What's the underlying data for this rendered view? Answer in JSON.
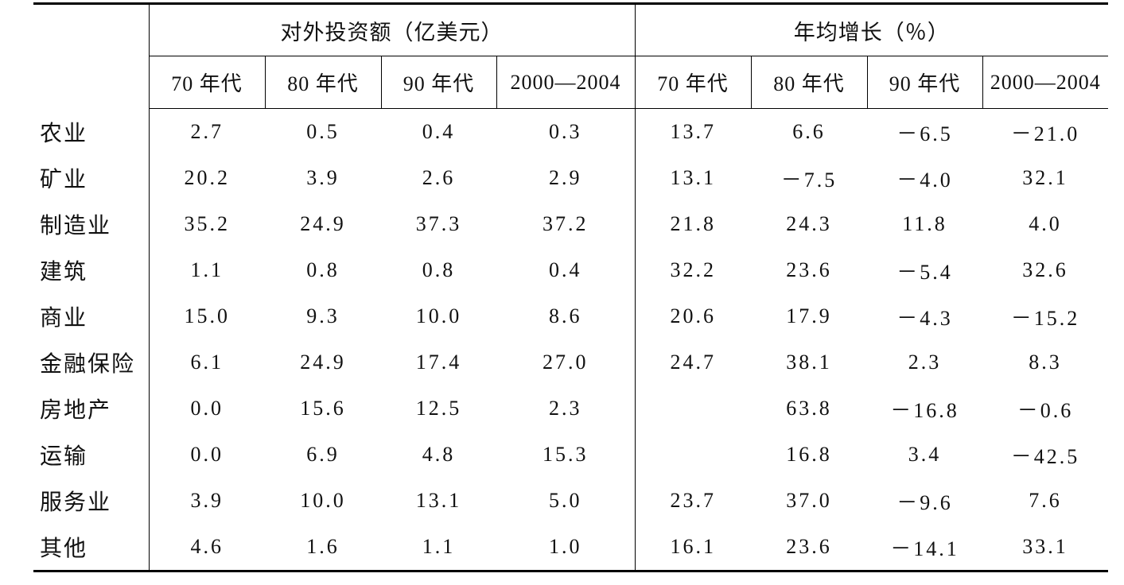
{
  "table": {
    "header": {
      "groups": [
        "对外投资额（亿美元）",
        "年均增长（％）"
      ],
      "columns": [
        "70 年代",
        "80 年代",
        "90 年代",
        "2000—2004",
        "70 年代",
        "80 年代",
        "90 年代",
        "2000—2004"
      ]
    },
    "rows": [
      {
        "label": "农业",
        "values": [
          "2.7",
          "0.5",
          "0.4",
          "0.3",
          "13.7",
          "6.6",
          "－6.5",
          "－21.0"
        ]
      },
      {
        "label": "矿业",
        "values": [
          "20.2",
          "3.9",
          "2.6",
          "2.9",
          "13.1",
          "－7.5",
          "－4.0",
          "32.1"
        ]
      },
      {
        "label": "制造业",
        "values": [
          "35.2",
          "24.9",
          "37.3",
          "37.2",
          "21.8",
          "24.3",
          "11.8",
          "4.0"
        ]
      },
      {
        "label": "建筑",
        "values": [
          "1.1",
          "0.8",
          "0.8",
          "0.4",
          "32.2",
          "23.6",
          "－5.4",
          "32.6"
        ]
      },
      {
        "label": "商业",
        "values": [
          "15.0",
          "9.3",
          "10.0",
          "8.6",
          "20.6",
          "17.9",
          "－4.3",
          "－15.2"
        ]
      },
      {
        "label": "金融保险",
        "values": [
          "6.1",
          "24.9",
          "17.4",
          "27.0",
          "24.7",
          "38.1",
          "2.3",
          "8.3"
        ]
      },
      {
        "label": "房地产",
        "values": [
          "0.0",
          "15.6",
          "12.5",
          "2.3",
          null,
          "63.8",
          "－16.8",
          "－0.6"
        ]
      },
      {
        "label": "运输",
        "values": [
          "0.0",
          "6.9",
          "4.8",
          "15.3",
          null,
          "16.8",
          "3.4",
          "－42.5"
        ]
      },
      {
        "label": "服务业",
        "values": [
          "3.9",
          "10.0",
          "13.1",
          "5.0",
          "23.7",
          "37.0",
          "－9.6",
          "7.6"
        ]
      },
      {
        "label": "其他",
        "values": [
          "4.6",
          "1.6",
          "1.1",
          "1.0",
          "16.1",
          "23.6",
          "－14.1",
          "33.1"
        ]
      }
    ]
  }
}
